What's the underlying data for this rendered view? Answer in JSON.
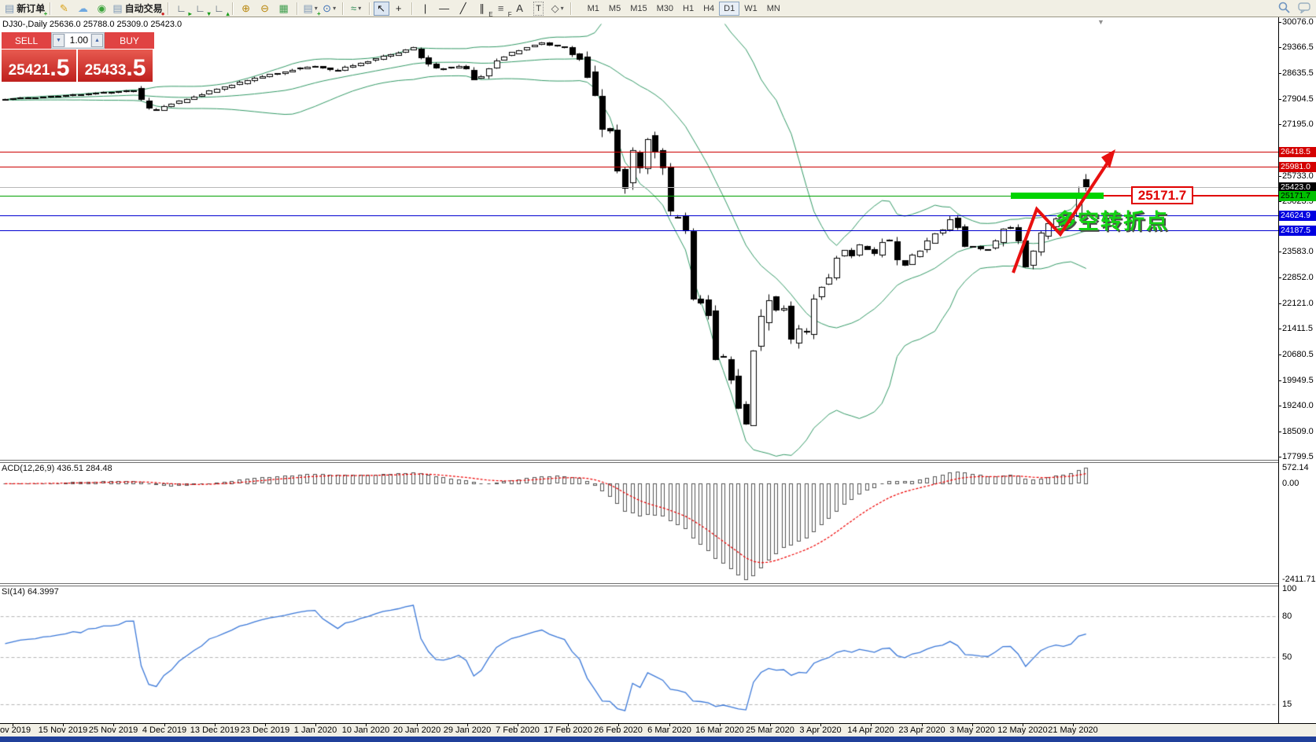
{
  "window": {
    "bottom_edge_color": "#20409a"
  },
  "toolbar": {
    "items_left": [
      {
        "name": "new-order-button",
        "glyph": "▤",
        "glyph_color": "#7d97b5",
        "badge": "+",
        "badge_color": "#1a9c1a",
        "label": "新订单"
      },
      {
        "sep": true
      },
      {
        "name": "crayon-icon",
        "glyph": "✎",
        "glyph_color": "#d9a21a"
      },
      {
        "name": "data-cloud-icon",
        "glyph": "☁",
        "glyph_color": "#6fa8e0"
      },
      {
        "name": "signals-icon",
        "glyph": "◉",
        "glyph_color": "#3aa33a"
      },
      {
        "name": "autotrading-button",
        "glyph": "▤",
        "glyph_color": "#7d97b5",
        "badge": "●",
        "badge_color": "#cc2222",
        "label": "自动交易"
      },
      {
        "sep": true
      },
      {
        "name": "chart-shift-end-icon",
        "glyph": "∟",
        "glyph_color": "#44556a",
        "badge": "▸",
        "badge_color": "#1a9c1a"
      },
      {
        "name": "chart-shift-icon",
        "glyph": "∟",
        "glyph_color": "#44556a",
        "badge": "▾",
        "badge_color": "#1a9c1a"
      },
      {
        "name": "chart-autoscroll-icon",
        "glyph": "∟",
        "glyph_color": "#44556a",
        "badge": "▴",
        "badge_color": "#1a9c1a"
      },
      {
        "sep": true
      },
      {
        "name": "zoom-in-icon",
        "glyph": "⊕",
        "glyph_color": "#b8860b"
      },
      {
        "name": "zoom-out-icon",
        "glyph": "⊖",
        "glyph_color": "#b8860b"
      },
      {
        "name": "tile-windows-icon",
        "glyph": "▦",
        "glyph_color": "#3f9e4d"
      },
      {
        "sep": true
      },
      {
        "name": "new-chart-button",
        "glyph": "▤",
        "glyph_color": "#7d97b5",
        "badge": "+",
        "badge_color": "#1a9c1a",
        "dropdown": true
      },
      {
        "name": "period-clock-button",
        "glyph": "⊙",
        "glyph_color": "#3b6fb5",
        "dropdown": true
      },
      {
        "sep": true
      },
      {
        "name": "indicators-button",
        "glyph": "≈",
        "glyph_color": "#2e8b57",
        "dropdown": true
      },
      {
        "sep": true
      },
      {
        "name": "cursor-button",
        "glyph": "↖",
        "glyph_color": "#222222",
        "active": true
      },
      {
        "name": "crosshair-button",
        "glyph": "+",
        "glyph_color": "#222222"
      },
      {
        "sep": true
      },
      {
        "name": "vertical-line-button",
        "glyph": "|",
        "glyph_color": "#222222"
      },
      {
        "name": "horizontal-line-button",
        "glyph": "—",
        "glyph_color": "#222222"
      },
      {
        "name": "trendline-button",
        "glyph": "╱",
        "glyph_color": "#222222"
      },
      {
        "name": "equidistant-channel-button",
        "glyph": "∥",
        "glyph_color": "#222222",
        "sub": "E"
      },
      {
        "name": "fibonacci-button",
        "glyph": "≡",
        "glyph_color": "#555555",
        "sub": "F"
      },
      {
        "name": "text-button",
        "glyph": "A",
        "glyph_color": "#333333"
      },
      {
        "name": "text-label-button",
        "glyph": "T",
        "glyph_color": "#333333",
        "boxed": true
      },
      {
        "name": "arrows-button",
        "glyph": "◇",
        "glyph_color": "#555555",
        "dropdown": true
      },
      {
        "sep": true
      }
    ],
    "timeframes": [
      {
        "label": "M1"
      },
      {
        "label": "M5"
      },
      {
        "label": "M15"
      },
      {
        "label": "M30"
      },
      {
        "label": "H1"
      },
      {
        "label": "H4"
      },
      {
        "label": "D1",
        "active": true
      },
      {
        "label": "W1"
      },
      {
        "label": "MN"
      }
    ]
  },
  "chart": {
    "title": "DJ30-,Daily  25636.0 25788.0 25309.0 25423.0",
    "shift_marker_glyph": "▼"
  },
  "trade_panel": {
    "sell_label": "SELL",
    "buy_label": "BUY",
    "volume": "1.00",
    "volume_down_glyph": "▼",
    "volume_up_glyph": "▲",
    "sell_price_int": "25421",
    "sell_price_dec": ".5",
    "buy_price_int": "25433",
    "buy_price_dec": ".5"
  },
  "price_axis": {
    "ticks": [
      "30076.0",
      "29366.5",
      "28635.5",
      "27904.5",
      "27195.0",
      "25733.0",
      "25023.5",
      "23583.0",
      "22852.0",
      "22121.0",
      "21411.5",
      "20680.5",
      "19949.5",
      "19240.0",
      "18509.0",
      "17799.5"
    ]
  },
  "levels": [
    {
      "value": "26418.5",
      "price": 26418.5,
      "line_color": "#cc0000",
      "badge_bg": "#d40000",
      "text_color": "#ffffff"
    },
    {
      "value": "25981.0",
      "price": 25981.0,
      "line_color": "#cc0000",
      "badge_bg": "#d40000",
      "text_color": "#ffffff"
    },
    {
      "value": "25423.0",
      "price": 25423.0,
      "line_color": "#b8b8b8",
      "badge_bg": "#000000",
      "text_color": "#ffffff"
    },
    {
      "value": "25171.7",
      "price": 25171.7,
      "line_color": "#00a000",
      "badge_bg": "#00c000",
      "text_color": "#000000"
    },
    {
      "value": "24624.9",
      "price": 24624.9,
      "line_color": "#0000d0",
      "badge_bg": "#0000e0",
      "text_color": "#ffffff"
    },
    {
      "value": "24187.5",
      "price": 24187.5,
      "line_color": "#0000d0",
      "badge_bg": "#0000e0",
      "text_color": "#ffffff"
    }
  ],
  "macd": {
    "label": "ACD(12,26,9) 436.51 284.48",
    "axis_max": "572.14",
    "axis_zero": "0.00",
    "axis_min": "-2411.71"
  },
  "rsi": {
    "label": "SI(14) 64.3997",
    "axis_labels": [
      "100",
      "80",
      "50",
      "15"
    ],
    "dashed_levels": [
      80,
      50,
      15
    ]
  },
  "date_axis": {
    "labels": [
      "ov 2019",
      "15 Nov 2019",
      "25 Nov 2019",
      "4 Dec 2019",
      "13 Dec 2019",
      "23 Dec 2019",
      "1 Jan 2020",
      "10 Jan 2020",
      "20 Jan 2020",
      "29 Jan 2020",
      "7 Feb 2020",
      "17 Feb 2020",
      "26 Feb 2020",
      "6 Mar 2020",
      "16 Mar 2020",
      "25 Mar 2020",
      "3 Apr 2020",
      "14 Apr 2020",
      "23 Apr 2020",
      "3 May 2020",
      "12 May 2020",
      "21 May 2020"
    ]
  },
  "annotations": {
    "highlight_label": "25171.7",
    "turning_point_text": "多空转折点",
    "arrow_color": "#e81010",
    "band_color": "#00d400"
  },
  "chart_data": {
    "type": "candlestick",
    "symbol": "DJ30-",
    "period": "Daily",
    "ohlc_display": {
      "open": 25636.0,
      "high": 25788.0,
      "low": 25309.0,
      "close": 25423.0
    },
    "bid": 25421.5,
    "ask": 25433.5,
    "price_range_visible": [
      17799.5,
      30076.0
    ],
    "levels": [
      26418.5,
      25981.0,
      25423.0,
      25171.7,
      24624.9,
      24187.5
    ],
    "indicators": {
      "bollinger": {
        "period": 20,
        "deviation": 2
      },
      "macd": {
        "fast": 12,
        "slow": 26,
        "signal": 9,
        "value": 436.51,
        "signal_value": 284.48,
        "visible_max": 572.14,
        "visible_min": -2411.71
      },
      "rsi": {
        "period": 14,
        "value": 64.3997
      }
    },
    "last_candle": [
      25636,
      25788,
      25309,
      25423
    ],
    "price_waypoints": [
      [
        6,
        27900
      ],
      [
        80,
        27990
      ],
      [
        144,
        28100
      ],
      [
        175,
        28160
      ],
      [
        195,
        27560
      ],
      [
        273,
        28150
      ],
      [
        337,
        28550
      ],
      [
        401,
        28850
      ],
      [
        430,
        28700
      ],
      [
        465,
        28950
      ],
      [
        530,
        29350
      ],
      [
        555,
        28750
      ],
      [
        594,
        28850
      ],
      [
        610,
        28400
      ],
      [
        640,
        29100
      ],
      [
        690,
        29500
      ],
      [
        722,
        29350
      ],
      [
        745,
        29000
      ],
      [
        760,
        27950
      ],
      [
        770,
        27100
      ],
      [
        780,
        26950
      ],
      [
        790,
        25750
      ],
      [
        800,
        25400
      ],
      [
        810,
        26700
      ],
      [
        820,
        25900
      ],
      [
        830,
        27100
      ],
      [
        840,
        26100
      ],
      [
        851,
        25850
      ],
      [
        860,
        23850
      ],
      [
        870,
        25020
      ],
      [
        880,
        23550
      ],
      [
        890,
        21200
      ],
      [
        900,
        23190
      ],
      [
        910,
        20190
      ],
      [
        920,
        21240
      ],
      [
        928,
        19900
      ],
      [
        936,
        20090
      ],
      [
        944,
        19170
      ],
      [
        952,
        18590
      ],
      [
        960,
        20700
      ],
      [
        968,
        21200
      ],
      [
        979,
        22550
      ],
      [
        987,
        21640
      ],
      [
        995,
        22330
      ],
      [
        1003,
        21917
      ],
      [
        1011,
        20940
      ],
      [
        1019,
        21413
      ],
      [
        1027,
        21050
      ],
      [
        1043,
        22680
      ],
      [
        1055,
        22650
      ],
      [
        1065,
        23430
      ],
      [
        1075,
        23720
      ],
      [
        1090,
        23390
      ],
      [
        1100,
        23950
      ],
      [
        1110,
        23500
      ],
      [
        1120,
        23540
      ],
      [
        1130,
        24240
      ],
      [
        1140,
        23650
      ],
      [
        1150,
        23020
      ],
      [
        1160,
        23480
      ],
      [
        1170,
        23515
      ],
      [
        1180,
        23775
      ],
      [
        1190,
        24130
      ],
      [
        1200,
        24100
      ],
      [
        1210,
        24630
      ],
      [
        1220,
        24350
      ],
      [
        1230,
        23720
      ],
      [
        1240,
        23750
      ],
      [
        1250,
        23660
      ],
      [
        1260,
        23665
      ],
      [
        1270,
        23875
      ],
      [
        1280,
        24330
      ],
      [
        1290,
        24220
      ],
      [
        1300,
        23765
      ],
      [
        1308,
        23250
      ],
      [
        1316,
        23625
      ],
      [
        1324,
        23685
      ],
      [
        1332,
        24600
      ],
      [
        1340,
        24210
      ],
      [
        1348,
        24575
      ],
      [
        1356,
        24474
      ],
      [
        1364,
        24465
      ],
      [
        1371,
        25100
      ],
      [
        1380,
        25423
      ]
    ]
  }
}
